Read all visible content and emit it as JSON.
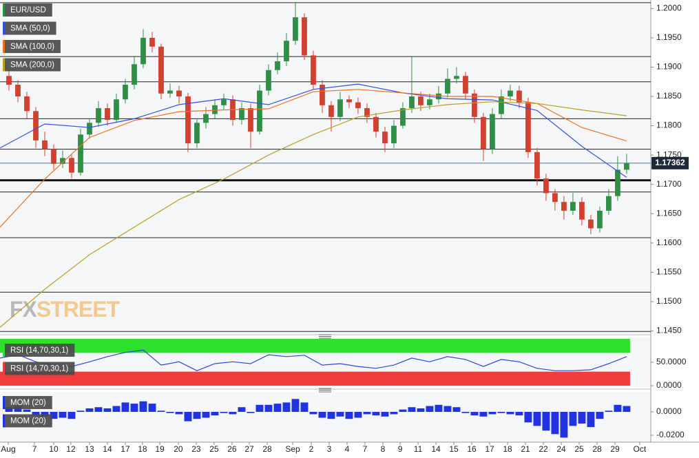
{
  "chart_data": [
    {
      "type": "candlestick",
      "title": "EUR/USD",
      "up_color": "#2f8f46",
      "down_color": "#d2402f",
      "xlim": [
        0,
        72.7
      ],
      "ylim": [
        1.1447,
        1.2011
      ],
      "xticks": [
        {
          "value": 0.92,
          "label": "Aug"
        },
        {
          "value": 3.85,
          "label": "7"
        },
        {
          "value": 6,
          "label": "10"
        },
        {
          "value": 7.92,
          "label": "12"
        },
        {
          "value": 10,
          "label": "13"
        },
        {
          "value": 12,
          "label": "14"
        },
        {
          "value": 14,
          "label": "17"
        },
        {
          "value": 15.92,
          "label": "18"
        },
        {
          "value": 17.85,
          "label": "19"
        },
        {
          "value": 19.92,
          "label": "20"
        },
        {
          "value": 21.92,
          "label": "23"
        },
        {
          "value": 23.92,
          "label": "25"
        },
        {
          "value": 25.92,
          "label": "26"
        },
        {
          "value": 27.85,
          "label": "27"
        },
        {
          "value": 29.85,
          "label": "28"
        },
        {
          "value": 32.7,
          "label": "Sep"
        },
        {
          "value": 34.77,
          "label": "2"
        },
        {
          "value": 36.77,
          "label": "3"
        },
        {
          "value": 38.77,
          "label": "4"
        },
        {
          "value": 40.77,
          "label": "7"
        },
        {
          "value": 42.77,
          "label": "8"
        },
        {
          "value": 44.7,
          "label": "9"
        },
        {
          "value": 46.7,
          "label": "11"
        },
        {
          "value": 48.7,
          "label": "14"
        },
        {
          "value": 50.7,
          "label": "15"
        },
        {
          "value": 52.7,
          "label": "16"
        },
        {
          "value": 54.7,
          "label": "17"
        },
        {
          "value": 56.7,
          "label": "18"
        },
        {
          "value": 58.7,
          "label": "21"
        },
        {
          "value": 60.7,
          "label": "22"
        },
        {
          "value": 62.7,
          "label": "24"
        },
        {
          "value": 64.7,
          "label": "25"
        },
        {
          "value": 66.7,
          "label": "28"
        },
        {
          "value": 68.7,
          "label": "29"
        },
        {
          "value": 71.46,
          "label": "Oct"
        }
      ],
      "yticks": [
        {
          "value": 1.2,
          "label": "1.2000"
        },
        {
          "value": 1.195,
          "label": "1.1950"
        },
        {
          "value": 1.19,
          "label": "1.1900"
        },
        {
          "value": 1.185,
          "label": "1.1850"
        },
        {
          "value": 1.18,
          "label": "1.1800"
        },
        {
          "value": 1.175,
          "label": "1.1750"
        },
        {
          "value": 1.17,
          "label": "1.1700"
        },
        {
          "value": 1.165,
          "label": "1.1650"
        },
        {
          "value": 1.16,
          "label": "1.1600"
        },
        {
          "value": 1.155,
          "label": "1.1550"
        },
        {
          "value": 1.15,
          "label": "1.1500"
        },
        {
          "value": 1.145,
          "label": "1.1450"
        }
      ],
      "levels": [
        1.201,
        1.1918,
        1.1875,
        1.1812,
        1.176,
        1.1687,
        1.1609,
        1.1516,
        1.1449
      ],
      "bold_level": 1.1707,
      "last_price": 1.17362,
      "watermark": {
        "left": "FX",
        "right": "STREET"
      },
      "x": [
        1,
        2,
        3,
        4,
        5,
        6,
        7,
        8,
        9,
        10,
        11,
        12,
        13,
        14,
        15,
        16,
        17,
        18,
        19,
        20,
        21,
        22,
        23,
        24,
        25,
        26,
        27,
        28,
        29,
        30,
        31,
        32,
        33,
        34,
        35,
        36,
        37,
        38,
        39,
        40,
        41,
        42,
        43,
        44,
        45,
        46,
        47,
        48,
        49,
        50,
        51,
        52,
        53,
        54,
        55,
        56,
        57,
        58,
        59,
        60,
        61,
        62,
        63,
        64,
        65,
        66,
        67,
        68,
        69,
        70
      ],
      "open": [
        1.1885,
        1.187,
        1.185,
        1.1825,
        1.1775,
        1.176,
        1.1735,
        1.1745,
        1.172,
        1.1785,
        1.1805,
        1.183,
        1.181,
        1.1845,
        1.187,
        1.1905,
        1.195,
        1.1935,
        1.1855,
        1.186,
        1.185,
        1.177,
        1.1805,
        1.182,
        1.1835,
        1.1845,
        1.181,
        1.183,
        1.179,
        1.186,
        1.1895,
        1.191,
        1.1945,
        1.1985,
        1.192,
        1.187,
        1.1835,
        1.1815,
        1.1845,
        1.184,
        1.183,
        1.1815,
        1.179,
        1.177,
        1.18,
        1.183,
        1.185,
        1.1835,
        1.1845,
        1.1855,
        1.188,
        1.1885,
        1.1855,
        1.1815,
        1.176,
        1.182,
        1.185,
        1.186,
        1.184,
        1.1755,
        1.171,
        1.1685,
        1.167,
        1.1655,
        1.167,
        1.164,
        1.1625,
        1.1655,
        1.168,
        1.1725
      ],
      "high": [
        1.1895,
        1.1878,
        1.1858,
        1.1832,
        1.179,
        1.1768,
        1.1758,
        1.1752,
        1.1795,
        1.1812,
        1.1842,
        1.1838,
        1.1855,
        1.188,
        1.1918,
        1.1965,
        1.196,
        1.194,
        1.1872,
        1.1868,
        1.1856,
        1.1812,
        1.1832,
        1.1845,
        1.1855,
        1.1852,
        1.184,
        1.1838,
        1.187,
        1.1905,
        1.1925,
        1.1958,
        1.2011,
        1.1992,
        1.1928,
        1.1878,
        1.1842,
        1.1858,
        1.1852,
        1.1848,
        1.1838,
        1.1822,
        1.1798,
        1.181,
        1.184,
        1.1918,
        1.1858,
        1.1855,
        1.1868,
        1.1898,
        1.19,
        1.1892,
        1.1862,
        1.1822,
        1.183,
        1.1862,
        1.187,
        1.1868,
        1.1848,
        1.1762,
        1.1718,
        1.1692,
        1.168,
        1.1685,
        1.1678,
        1.1648,
        1.1662,
        1.1692,
        1.1748,
        1.1752
      ],
      "low": [
        1.186,
        1.184,
        1.1812,
        1.1762,
        1.1748,
        1.1725,
        1.1728,
        1.171,
        1.1715,
        1.1778,
        1.1798,
        1.18,
        1.1805,
        1.1838,
        1.1862,
        1.1898,
        1.1925,
        1.1845,
        1.1848,
        1.1838,
        1.1755,
        1.1762,
        1.1795,
        1.1812,
        1.1828,
        1.18,
        1.1802,
        1.1762,
        1.1785,
        1.1852,
        1.1888,
        1.1902,
        1.1938,
        1.1912,
        1.1862,
        1.1822,
        1.179,
        1.1808,
        1.183,
        1.182,
        1.1805,
        1.178,
        1.1755,
        1.1762,
        1.1795,
        1.1822,
        1.1825,
        1.1828,
        1.1838,
        1.1848,
        1.1872,
        1.1845,
        1.1805,
        1.174,
        1.1752,
        1.1812,
        1.1842,
        1.183,
        1.1745,
        1.1698,
        1.1672,
        1.1655,
        1.164,
        1.1648,
        1.163,
        1.1615,
        1.1618,
        1.1648,
        1.1672,
        1.1718
      ],
      "close": [
        1.187,
        1.185,
        1.1825,
        1.1775,
        1.176,
        1.1735,
        1.1745,
        1.172,
        1.1785,
        1.1805,
        1.183,
        1.181,
        1.1845,
        1.187,
        1.1905,
        1.195,
        1.1935,
        1.1855,
        1.186,
        1.185,
        1.177,
        1.1805,
        1.182,
        1.1835,
        1.1845,
        1.181,
        1.183,
        1.179,
        1.186,
        1.1895,
        1.191,
        1.1945,
        1.1985,
        1.192,
        1.187,
        1.1835,
        1.1815,
        1.1845,
        1.184,
        1.183,
        1.1815,
        1.179,
        1.177,
        1.18,
        1.183,
        1.185,
        1.1835,
        1.1845,
        1.1855,
        1.188,
        1.1885,
        1.1855,
        1.1815,
        1.176,
        1.182,
        1.185,
        1.186,
        1.184,
        1.1755,
        1.171,
        1.1685,
        1.167,
        1.1655,
        1.167,
        1.164,
        1.1625,
        1.1655,
        1.168,
        1.1725,
        1.1736
      ],
      "series": [
        {
          "name": "SMA (50,0)",
          "color": "#3050e0",
          "x": [
            0,
            5,
            10,
            15,
            20,
            25,
            30,
            35,
            40,
            45,
            50,
            55,
            60,
            65,
            70
          ],
          "values": [
            1.1762,
            1.1803,
            1.1797,
            1.1812,
            1.1836,
            1.1846,
            1.1836,
            1.1862,
            1.1871,
            1.1856,
            1.1846,
            1.1844,
            1.1826,
            1.1765,
            1.1712
          ]
        },
        {
          "name": "SMA (100,0)",
          "color": "#f07020",
          "x": [
            0,
            5,
            10,
            15,
            20,
            25,
            30,
            35,
            40,
            45,
            50,
            55,
            60,
            65,
            70
          ],
          "values": [
            1.1627,
            1.1709,
            1.178,
            1.1809,
            1.1824,
            1.1827,
            1.1829,
            1.1858,
            1.1862,
            1.1856,
            1.185,
            1.185,
            1.1838,
            1.1797,
            1.1774
          ]
        },
        {
          "name": "SMA (200,0)",
          "color": "#b8a020",
          "x": [
            0,
            5,
            10,
            15,
            20,
            25,
            30,
            35,
            40,
            45,
            50,
            55,
            60,
            65,
            70
          ],
          "values": [
            1.1456,
            1.1521,
            1.158,
            1.1627,
            1.1674,
            1.1709,
            1.175,
            1.1785,
            1.1815,
            1.1827,
            1.1836,
            1.1841,
            1.1838,
            1.1827,
            1.1817
          ]
        }
      ]
    },
    {
      "type": "line",
      "title": "RSI (14,70,30,1)",
      "color": "#2c46d6",
      "ylim": [
        0,
        100
      ],
      "yticks": [
        {
          "value": 50,
          "label": "50.0000"
        },
        {
          "value": 0,
          "label": "0.0000"
        }
      ],
      "bands": [
        {
          "from": 70,
          "to": 100,
          "color": "#2ee02e"
        },
        {
          "from": 0,
          "to": 30,
          "color": "#f23c3c"
        }
      ],
      "x": [
        0,
        2,
        4,
        6,
        8,
        10,
        12,
        14,
        16,
        18,
        20,
        22,
        24,
        26,
        28,
        30,
        32,
        34,
        36,
        38,
        40,
        42,
        44,
        46,
        48,
        50,
        52,
        54,
        56,
        58,
        60,
        62,
        64,
        66,
        68,
        70
      ],
      "values": [
        59,
        66,
        51,
        44,
        41,
        51,
        62,
        71,
        76,
        44,
        51,
        32,
        47,
        51,
        47,
        66,
        62,
        65,
        44,
        47,
        41,
        37,
        44,
        59,
        51,
        62,
        56,
        41,
        56,
        51,
        37,
        32,
        32,
        34,
        47,
        62
      ]
    },
    {
      "type": "bar",
      "title": "MOM (20)",
      "color": "#1f33e0",
      "ylim": [
        -0.0247,
        0.0153
      ],
      "yticks": [
        {
          "value": 0,
          "label": "0.0000"
        },
        {
          "value": -0.02,
          "label": "-0.0200"
        }
      ],
      "x": [
        1,
        2,
        3,
        4,
        5,
        6,
        7,
        8,
        9,
        10,
        11,
        12,
        13,
        14,
        15,
        16,
        17,
        18,
        19,
        20,
        21,
        22,
        23,
        24,
        25,
        26,
        27,
        28,
        29,
        30,
        31,
        32,
        33,
        34,
        35,
        36,
        37,
        38,
        39,
        40,
        41,
        42,
        43,
        44,
        45,
        46,
        47,
        48,
        49,
        50,
        51,
        52,
        53,
        54,
        55,
        56,
        57,
        58,
        59,
        60,
        61,
        62,
        63,
        64,
        65,
        66,
        67,
        68,
        69,
        70
      ],
      "values": [
        0.004,
        0.005,
        0.002,
        -0.003,
        -0.004,
        -0.006,
        -0.005,
        -0.006,
        0.001,
        0.003,
        0.004,
        0.003,
        0.005,
        0.008,
        0.007,
        0.009,
        0.007,
        0.001,
        -0.001,
        -0.002,
        -0.008,
        -0.006,
        -0.005,
        -0.003,
        -0.001,
        -0.002,
        0.004,
        -0.001,
        0.006,
        0.006,
        0.007,
        0.008,
        0.011,
        0.008,
        -0.002,
        -0.005,
        -0.006,
        -0.004,
        -0.006,
        -0.005,
        -0.002,
        -0.003,
        -0.004,
        -0.002,
        0.002,
        0.004,
        0.003,
        0.005,
        0.006,
        0.005,
        0.004,
        -0.001,
        -0.003,
        -0.004,
        -0.002,
        -0.001,
        -0.002,
        -0.003,
        -0.009,
        -0.012,
        -0.016,
        -0.019,
        -0.022,
        -0.012,
        -0.01,
        -0.013,
        -0.006,
        0.001,
        0.006,
        0.005
      ]
    }
  ]
}
